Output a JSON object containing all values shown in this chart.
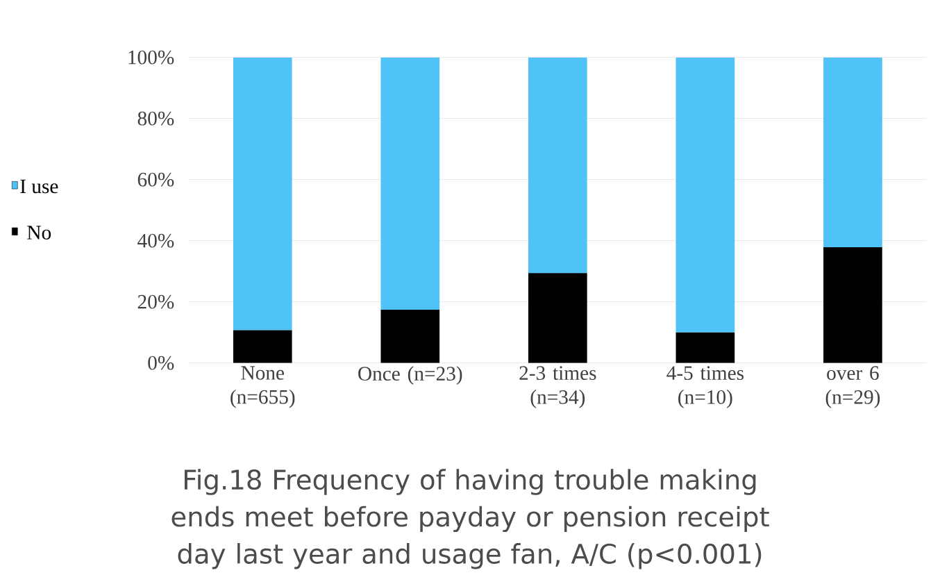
{
  "chart_data": {
    "type": "bar",
    "stacked": true,
    "title": "Fig.18 Frequency of having trouble making ends meet before payday or pension receipt day last year and usage fan, A/C (p<0.001)",
    "categories": [
      "None (n=655)",
      "Once (n=23)",
      "2-3 times (n=34)",
      "4-5 times (n=10)",
      "over 6 (n=29)"
    ],
    "series": [
      {
        "name": "No",
        "color": "#000000",
        "values": [
          10.7,
          17.4,
          29.4,
          10,
          37.9
        ]
      },
      {
        "name": "I use",
        "color": "#4fc3f7",
        "values": [
          89.3,
          82.6,
          70.6,
          90,
          62.1
        ]
      }
    ],
    "ylim": [
      0,
      100
    ],
    "yticks": [
      {
        "value": 0,
        "label": "0%"
      },
      {
        "value": 20,
        "label": "20%"
      },
      {
        "value": 40,
        "label": "40%"
      },
      {
        "value": 60,
        "label": "60%"
      },
      {
        "value": 80,
        "label": "80%"
      },
      {
        "value": 100,
        "label": "100%"
      }
    ],
    "grid": "y",
    "legend": "left"
  }
}
